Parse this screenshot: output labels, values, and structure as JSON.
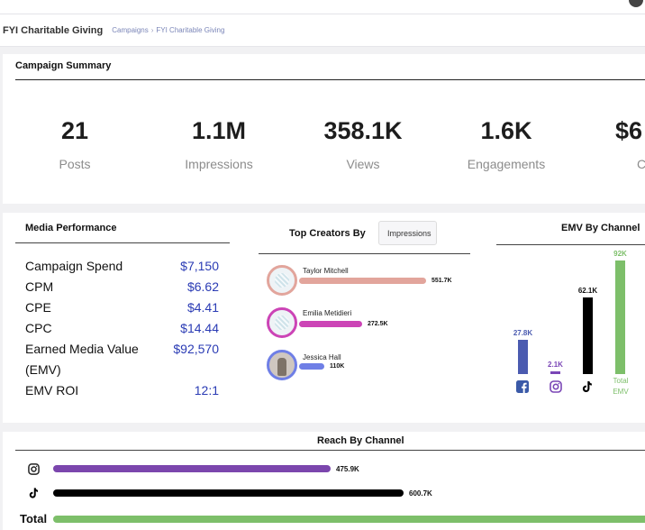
{
  "header": {
    "title": "FYI Charitable Giving",
    "breadcrumb": [
      "Campaigns",
      "FYI Charitable Giving"
    ],
    "breadcrumb_sep": "›"
  },
  "summary": {
    "title": "Campaign Summary",
    "metrics": [
      {
        "value": "21",
        "label": "Posts"
      },
      {
        "value": "1.1M",
        "label": "Impressions"
      },
      {
        "value": "358.1K",
        "label": "Views"
      },
      {
        "value": "1.6K",
        "label": "Engagements"
      },
      {
        "value": "$6",
        "label": "C"
      }
    ]
  },
  "media_performance": {
    "title": "Media Performance",
    "rows": [
      {
        "label": "Campaign Spend",
        "value": "$7,150"
      },
      {
        "label": "CPM",
        "value": "$6.62"
      },
      {
        "label": "CPE",
        "value": "$4.41"
      },
      {
        "label": "CPC",
        "value": "$14.44"
      },
      {
        "label": "Earned Media Value",
        "value": "$92,570"
      },
      {
        "label": "(EMV)",
        "value": ""
      },
      {
        "label": "EMV ROI",
        "value": "12:1"
      }
    ]
  },
  "top_creators": {
    "title": "Top Creators By",
    "select_value": "Impressions",
    "creators": [
      {
        "name": "Taylor Mitchell",
        "value": "551.7K",
        "amount": 551.7,
        "color": "#e2a59c"
      },
      {
        "name": "Emilia Metidieri",
        "value": "272.5K",
        "amount": 272.5,
        "color": "#cc44b6"
      },
      {
        "name": "Jessica Hall",
        "value": "110K",
        "amount": 110,
        "color": "#6f7fe6"
      }
    ]
  },
  "emv_by_channel": {
    "title": "EMV By Channel",
    "bars": [
      {
        "channel": "facebook",
        "icon": "facebook-icon",
        "value": "27.8K",
        "amount": 27.8,
        "color": "#4b5bb0"
      },
      {
        "channel": "instagram",
        "icon": "instagram-icon",
        "value": "2.1K",
        "amount": 2.1,
        "color": "#7a46b6"
      },
      {
        "channel": "tiktok",
        "icon": "tiktok-icon",
        "value": "62.1K",
        "amount": 62.1,
        "color": "#000000"
      },
      {
        "channel": "total",
        "label": "Total EMV",
        "value": "92K",
        "amount": 92,
        "color": "#7dbf6a"
      }
    ]
  },
  "reach_by_channel": {
    "title": "Reach By Channel",
    "rows": [
      {
        "channel": "instagram",
        "icon": "instagram-icon",
        "value": "475.9K",
        "amount": 475.9,
        "color": "#7b46ad"
      },
      {
        "channel": "tiktok",
        "icon": "tiktok-icon",
        "value": "600.7K",
        "amount": 600.7,
        "color": "#000000"
      },
      {
        "channel": "total",
        "label": "Total",
        "value": "",
        "color": "#7dbf6a"
      }
    ]
  }
}
